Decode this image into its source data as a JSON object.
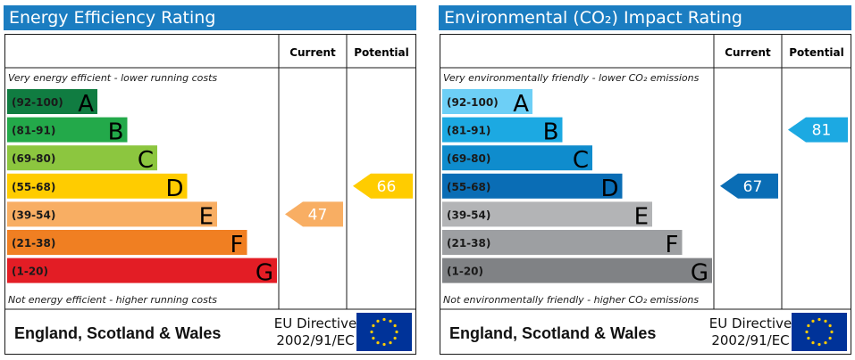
{
  "colors": {
    "header_bg": "#1b7dc1",
    "energy_bands": [
      "#107c41",
      "#23a94a",
      "#8cc63f",
      "#ffcc00",
      "#f8ae63",
      "#f07f22",
      "#e31d25"
    ],
    "env_bands": [
      "#6dcff6",
      "#1ca9e2",
      "#0f8ccd",
      "#0a6db5",
      "#b3b4b6",
      "#9d9fa2",
      "#808285"
    ],
    "eu_flag": "#003399",
    "eu_stars": "#ffcc00"
  },
  "chart_data": [
    {
      "type": "bar",
      "title": "Energy Efficiency Rating",
      "column_headers": {
        "current": "Current",
        "potential": "Potential"
      },
      "top_note": "Very energy efficient - lower running costs",
      "bottom_note": "Not energy efficient - higher running costs",
      "bands": [
        {
          "range": "(92-100)",
          "letter": "A",
          "min": 92,
          "max": 100
        },
        {
          "range": "(81-91)",
          "letter": "B",
          "min": 81,
          "max": 91
        },
        {
          "range": "(69-80)",
          "letter": "C",
          "min": 69,
          "max": 80
        },
        {
          "range": "(55-68)",
          "letter": "D",
          "min": 55,
          "max": 68
        },
        {
          "range": "(39-54)",
          "letter": "E",
          "min": 39,
          "max": 54
        },
        {
          "range": "(21-38)",
          "letter": "F",
          "min": 21,
          "max": 38
        },
        {
          "range": "(1-20)",
          "letter": "G",
          "min": 1,
          "max": 20
        }
      ],
      "current": {
        "value": 47,
        "band": "E"
      },
      "potential": {
        "value": 66,
        "band": "D"
      },
      "footer": {
        "region": "England, Scotland & Wales",
        "directive_line1": "EU Directive",
        "directive_line2": "2002/91/EC"
      }
    },
    {
      "type": "bar",
      "title": "Environmental (CO₂) Impact Rating",
      "column_headers": {
        "current": "Current",
        "potential": "Potential"
      },
      "top_note": "Very environmentally friendly - lower CO₂ emissions",
      "bottom_note": "Not environmentally friendly - higher CO₂ emissions",
      "bands": [
        {
          "range": "(92-100)",
          "letter": "A",
          "min": 92,
          "max": 100
        },
        {
          "range": "(81-91)",
          "letter": "B",
          "min": 81,
          "max": 91
        },
        {
          "range": "(69-80)",
          "letter": "C",
          "min": 69,
          "max": 80
        },
        {
          "range": "(55-68)",
          "letter": "D",
          "min": 55,
          "max": 68
        },
        {
          "range": "(39-54)",
          "letter": "E",
          "min": 39,
          "max": 54
        },
        {
          "range": "(21-38)",
          "letter": "F",
          "min": 21,
          "max": 38
        },
        {
          "range": "(1-20)",
          "letter": "G",
          "min": 1,
          "max": 20
        }
      ],
      "current": {
        "value": 67,
        "band": "D"
      },
      "potential": {
        "value": 81,
        "band": "B"
      },
      "footer": {
        "region": "England, Scotland & Wales",
        "directive_line1": "EU Directive",
        "directive_line2": "2002/91/EC"
      }
    }
  ]
}
